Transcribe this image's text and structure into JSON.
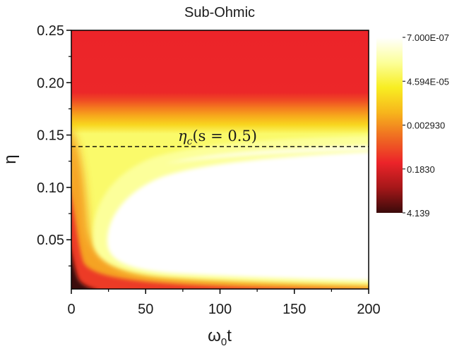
{
  "chart_data": {
    "type": "heatmap",
    "title": "Sub-Ohmic",
    "xlabel": "ω",
    "xlabel_sub": "0",
    "xlabel_suffix": "t",
    "ylabel": "η",
    "xlim": [
      0,
      200
    ],
    "ylim": [
      0.003,
      0.25
    ],
    "x_ticks": [
      0,
      50,
      100,
      150,
      200
    ],
    "x_tick_labels": [
      "0",
      "50",
      "100",
      "150",
      "200"
    ],
    "y_ticks": [
      0.05,
      0.1,
      0.15,
      0.2,
      0.25
    ],
    "y_tick_labels": [
      "0.05",
      "0.10",
      "0.15",
      "0.20",
      "0.25"
    ],
    "annotation": {
      "text_main": "η",
      "text_sub": "c",
      "text_rest": "(s = 0.5)",
      "y": 0.139,
      "x_range": [
        0,
        200
      ],
      "style": "dashed"
    },
    "colorbar": {
      "scale": "log",
      "tick_labels": [
        "7.000E-07",
        "4.594E-05",
        "0.002930",
        "0.1830",
        "4.139"
      ],
      "min": 7e-07,
      "max": 4.139,
      "colors_low_to_high": [
        "#ffffff",
        "#fcff9a",
        "#f8ee22",
        "#f7b51c",
        "#ef6a22",
        "#ec2429",
        "#a51719",
        "#3a0a0a"
      ]
    },
    "regions": [
      {
        "name": "red-upper-region",
        "y_min": 0.15,
        "y_max": 0.25,
        "level": "0.1830"
      },
      {
        "name": "white-low-value-region",
        "x_min": 35,
        "x_max": 200,
        "y_min": 0.02,
        "y_max": 0.11,
        "level": "7.000E-07"
      },
      {
        "name": "dark-corner-region",
        "x_min": 0,
        "x_max": 5,
        "y_min": 0.003,
        "y_max": 0.02,
        "level": "4.139"
      }
    ]
  }
}
